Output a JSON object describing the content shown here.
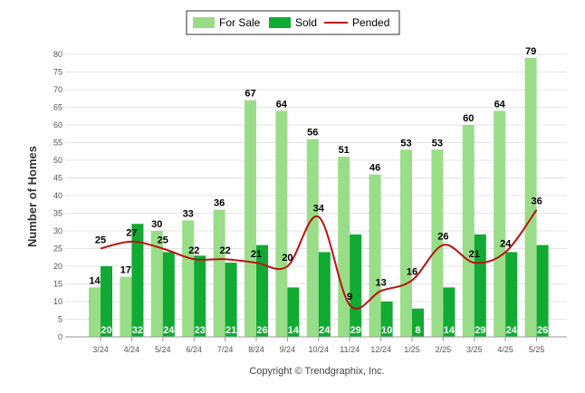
{
  "chart_data": {
    "type": "bar",
    "categories": [
      "3/24",
      "4/24",
      "5/24",
      "6/24",
      "7/24",
      "8/24",
      "9/24",
      "10/24",
      "11/24",
      "12/24",
      "1/25",
      "2/25",
      "3/25",
      "4/25",
      "5/25"
    ],
    "series": [
      {
        "name": "For Sale",
        "type": "bar",
        "color": "#99dd88",
        "values": [
          14,
          17,
          30,
          33,
          36,
          67,
          64,
          56,
          51,
          46,
          53,
          53,
          60,
          64,
          79
        ]
      },
      {
        "name": "Sold",
        "type": "bar",
        "color": "#11aa33",
        "values": [
          20,
          32,
          24,
          23,
          21,
          26,
          14,
          24,
          29,
          10,
          8,
          14,
          29,
          24,
          26
        ]
      },
      {
        "name": "Pended",
        "type": "line",
        "color": "#bb1111",
        "values": [
          25,
          27,
          25,
          22,
          22,
          21,
          20,
          34,
          9,
          13,
          16,
          26,
          21,
          24,
          36
        ]
      }
    ],
    "xlabel": "",
    "ylabel": "Number of Homes",
    "ylim": [
      0,
      80
    ],
    "yticks": [
      0,
      5,
      10,
      15,
      20,
      25,
      30,
      35,
      40,
      45,
      50,
      55,
      60,
      65,
      70,
      75,
      80
    ],
    "grid": true,
    "legend": "top-center",
    "footer": "Copyright © Trendgraphix, Inc."
  }
}
